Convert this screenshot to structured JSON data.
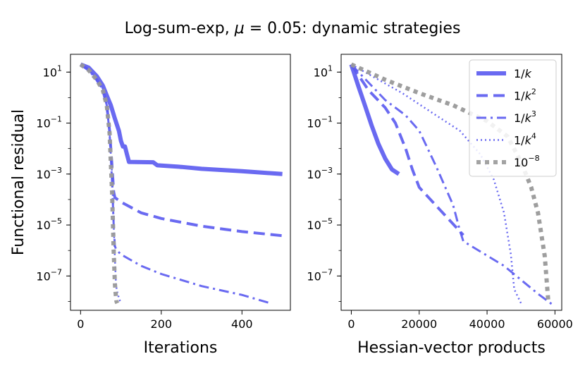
{
  "title": "Log-sum-exp, μ = 0.05: dynamic strategies",
  "colors": {
    "blue": "#5a5af0",
    "gray": "#999999"
  },
  "chart_data": [
    {
      "type": "line",
      "xlabel": "Iterations",
      "ylabel": "Functional residual",
      "yscale": "log",
      "xlim": [
        -25,
        520
      ],
      "ylim": [
        4.5e-09,
        50
      ],
      "xticks": [
        0,
        200,
        400
      ],
      "xtick_labels": [
        "0",
        "200",
        "400"
      ],
      "yticks": [
        10,
        0.1,
        0.001,
        1e-05,
        1e-07
      ],
      "ytick_base": [
        "10",
        "10",
        "10",
        "10",
        "10"
      ],
      "ytick_exp": [
        "1",
        "−1",
        "−3",
        "−5",
        "−7"
      ],
      "series": [
        {
          "name": "1/k",
          "style": "solid",
          "color": "#5a5af0",
          "width": 6,
          "x": [
            0,
            20,
            40,
            55,
            65,
            75,
            85,
            95,
            100,
            105,
            110,
            115,
            120,
            180,
            190,
            250,
            300,
            400,
            500
          ],
          "y": [
            20,
            15,
            7,
            3,
            1.2,
            0.5,
            0.15,
            0.05,
            0.02,
            0.012,
            0.012,
            0.006,
            0.003,
            0.0029,
            0.0022,
            0.0019,
            0.0016,
            0.0013,
            0.001
          ]
        },
        {
          "name": "1/k^2",
          "style": "dash",
          "color": "#5a5af0",
          "width": 4,
          "x": [
            0,
            20,
            40,
            55,
            65,
            72,
            78,
            82,
            85,
            88,
            100,
            150,
            200,
            300,
            400,
            500
          ],
          "y": [
            20,
            12,
            5,
            2,
            0.5,
            0.05,
            0.002,
            0.0002,
            0.00012,
            0.00011,
            8e-05,
            3e-05,
            1.8e-05,
            9e-06,
            5.5e-06,
            3.8e-06
          ]
        },
        {
          "name": "1/k^3",
          "style": "dashdot",
          "color": "#5a5af0",
          "width": 3,
          "x": [
            0,
            20,
            40,
            55,
            65,
            72,
            78,
            82,
            85,
            88,
            100,
            150,
            200,
            300,
            400,
            465
          ],
          "y": [
            20,
            12,
            5,
            2,
            0.5,
            0.04,
            0.0005,
            1e-05,
            1.5e-06,
            1.1e-06,
            7e-07,
            2.5e-07,
            1.2e-07,
            4e-08,
            1.8e-08,
            9e-09
          ]
        },
        {
          "name": "1/k^4",
          "style": "dot",
          "color": "#5a5af0",
          "width": 2.5,
          "x": [
            0,
            20,
            40,
            55,
            65,
            72,
            78,
            82,
            85,
            88,
            92,
            96,
            100
          ],
          "y": [
            20,
            12,
            5,
            2,
            0.5,
            0.04,
            0.001,
            1e-05,
            5e-07,
            4e-08,
            2e-08,
            1.2e-08,
            9e-09
          ]
        },
        {
          "name": "10^-8",
          "style": "dot",
          "color": "#999999",
          "width": 6,
          "x": [
            0,
            20,
            40,
            55,
            65,
            72,
            78,
            82,
            85,
            87,
            89,
            91
          ],
          "y": [
            20,
            12,
            5,
            2,
            0.5,
            0.04,
            0.0002,
            1e-06,
            5e-08,
            2e-08,
            1e-08,
            8.5e-09
          ]
        }
      ]
    },
    {
      "type": "line",
      "xlabel": "Hessian-vector products",
      "ylabel": "",
      "yscale": "log",
      "xlim": [
        -3000,
        62000
      ],
      "ylim": [
        4.5e-09,
        50
      ],
      "xticks": [
        0,
        20000,
        40000,
        60000
      ],
      "xtick_labels": [
        "0",
        "20000",
        "40000",
        "60000"
      ],
      "yticks": [
        10,
        0.1,
        0.001,
        1e-05,
        1e-07
      ],
      "ytick_base": [
        "10",
        "10",
        "10",
        "10",
        "10"
      ],
      "ytick_exp": [
        "1",
        "−1",
        "−3",
        "−5",
        "−7"
      ],
      "series": [
        {
          "name": "1/k",
          "style": "solid",
          "color": "#5a5af0",
          "width": 6,
          "x": [
            0,
            2000,
            4000,
            6000,
            8000,
            10000,
            12000,
            14000
          ],
          "y": [
            20,
            3,
            0.5,
            0.08,
            0.015,
            0.004,
            0.0015,
            0.001
          ]
        },
        {
          "name": "1/k^2",
          "style": "dash",
          "color": "#5a5af0",
          "width": 4,
          "x": [
            0,
            5000,
            10000,
            13000,
            16000,
            18000,
            20000,
            33000
          ],
          "y": [
            20,
            2,
            0.4,
            0.1,
            0.01,
            0.0015,
            0.0003,
            4e-06
          ]
        },
        {
          "name": "1/k^3",
          "style": "dashdot",
          "color": "#5a5af0",
          "width": 3,
          "x": [
            0,
            10000,
            16000,
            20000,
            25000,
            30000,
            32000,
            33000,
            45000,
            55000,
            59000
          ],
          "y": [
            20,
            0.8,
            0.2,
            0.05,
            0.002,
            6e-05,
            6e-06,
            2.3e-06,
            2.5e-07,
            2e-08,
            8e-09
          ]
        },
        {
          "name": "1/k^4",
          "style": "dot",
          "color": "#5a5af0",
          "width": 2.5,
          "x": [
            0,
            15000,
            25000,
            32000,
            38000,
            42000,
            45000,
            47000,
            48000,
            50000
          ],
          "y": [
            20,
            1.5,
            0.2,
            0.05,
            0.006,
            0.0006,
            3e-05,
            7e-07,
            3e-08,
            8.5e-09
          ]
        },
        {
          "name": "10^-8",
          "style": "dot",
          "color": "#999999",
          "width": 6,
          "x": [
            0,
            10000,
            20000,
            30000,
            40000,
            46000,
            50000,
            53000,
            55000,
            57000,
            58000
          ],
          "y": [
            20,
            5,
            1.5,
            0.5,
            0.12,
            0.03,
            0.003,
            0.0003,
            3e-05,
            6e-07,
            1.2e-08
          ]
        }
      ],
      "legend": {
        "placement": "top-right",
        "entries": [
          {
            "base": "1/",
            "var": "k",
            "sup": ""
          },
          {
            "base": "1/",
            "var": "k",
            "sup": "2"
          },
          {
            "base": "1/",
            "var": "k",
            "sup": "3"
          },
          {
            "base": "1/",
            "var": "k",
            "sup": "4"
          },
          {
            "base": "10",
            "var": "",
            "sup": "−8"
          }
        ]
      }
    }
  ]
}
